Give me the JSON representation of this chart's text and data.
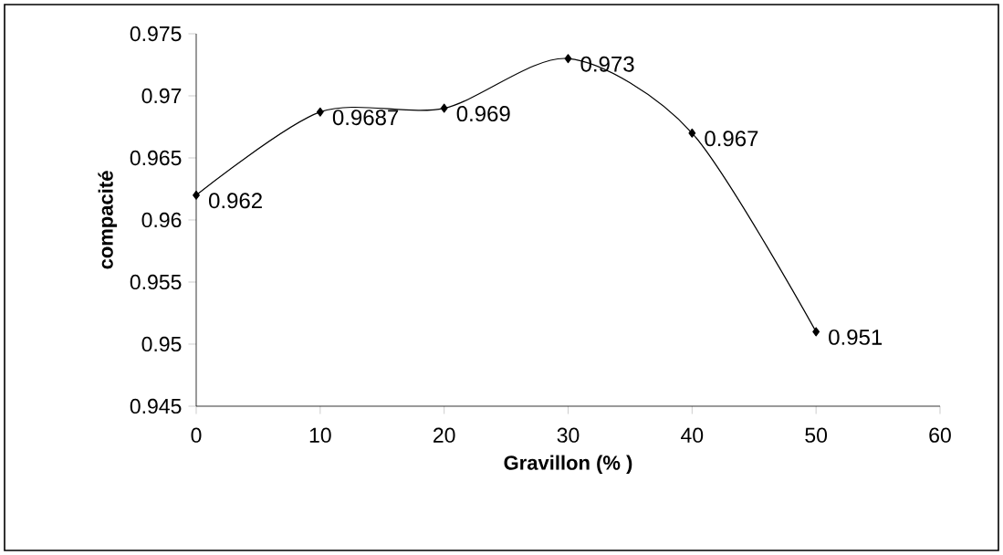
{
  "chart_data": {
    "type": "line",
    "xlabel": "Gravillon (% )",
    "ylabel": "compacité",
    "x": [
      0,
      10,
      20,
      30,
      40,
      50
    ],
    "values": [
      0.962,
      0.9687,
      0.969,
      0.973,
      0.967,
      0.951
    ],
    "color": "#000000",
    "marker": "diamond",
    "line_style": "solid",
    "data_labels": true,
    "xlim": [
      0,
      60
    ],
    "xticks": [
      0,
      10,
      20,
      30,
      40,
      50,
      60
    ],
    "ylim": [
      0.945,
      0.975
    ],
    "yticks": [
      0.945,
      0.95,
      0.955,
      0.96,
      0.965,
      0.97,
      0.975
    ]
  }
}
